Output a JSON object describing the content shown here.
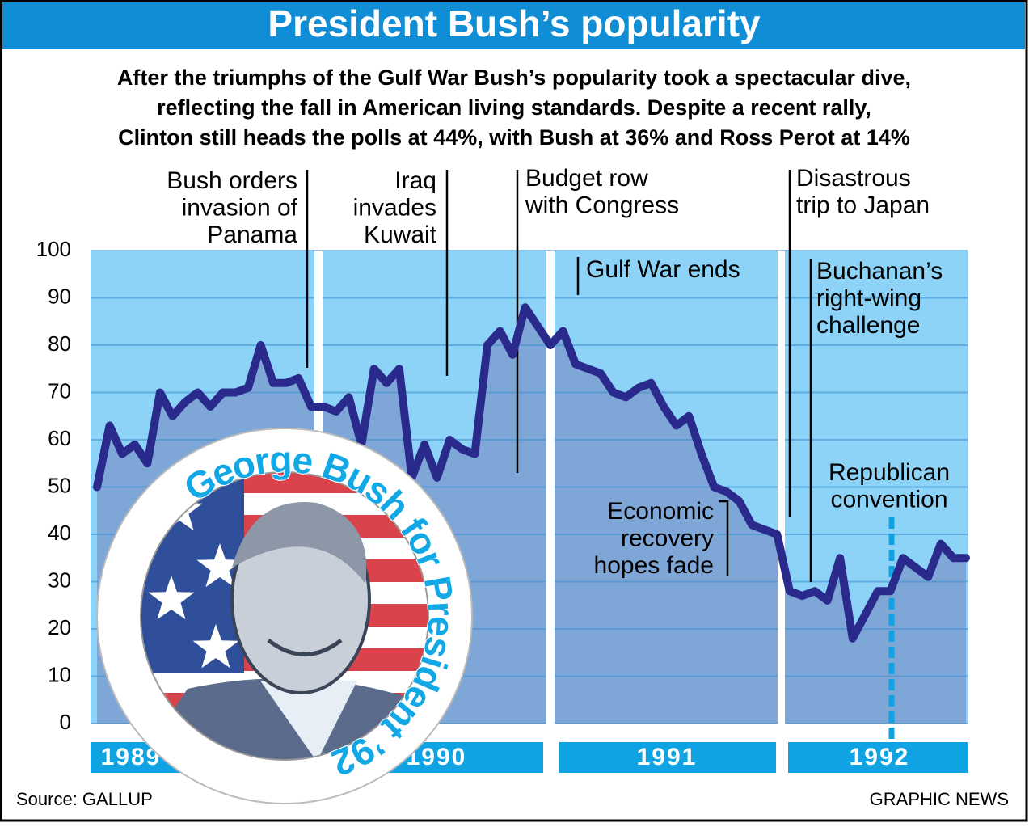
{
  "chart_data": {
    "type": "line",
    "title": "President Bush’s popularity",
    "subtitle": [
      "After the triumphs of the Gulf War Bush’s popularity took a spectacular dive,",
      "reflecting the fall in American living standards. Despite a recent rally,",
      "Clinton still heads the polls at 44%, with Bush at 36% and Ross Perot at 14%"
    ],
    "values": [
      50,
      63,
      57,
      59,
      55,
      70,
      65,
      68,
      70,
      67,
      70,
      70,
      71,
      80,
      72,
      72,
      73,
      67,
      67,
      66,
      69,
      59,
      75,
      72,
      75,
      52,
      59,
      52,
      60,
      58,
      57,
      80,
      83,
      78,
      88,
      84,
      80,
      83,
      76,
      75,
      74,
      70,
      69,
      71,
      72,
      67,
      63,
      65,
      57,
      50,
      49,
      47,
      42,
      41,
      40,
      28,
      27,
      28,
      26,
      35,
      18,
      23,
      28,
      28,
      35,
      33,
      31,
      38,
      35,
      35
    ],
    "color": "#2a2a8c",
    "area_color": "#7ea6d6",
    "background_color": "#8dd3f7",
    "ylim": [
      0,
      100
    ],
    "yticks": [
      0,
      10,
      20,
      30,
      40,
      50,
      60,
      70,
      80,
      90,
      100
    ],
    "grid": true,
    "years": [
      "1989",
      "1990",
      "1991",
      "1992"
    ],
    "annotations": [
      [
        "Bush orders",
        "invasion of",
        "Panama"
      ],
      [
        "Iraq",
        "invades",
        "Kuwait"
      ],
      [
        "Budget row",
        "with Congress"
      ],
      [
        "Gulf War ends"
      ],
      [
        "Economic",
        "recovery",
        "hopes fade"
      ],
      [
        "Disastrous",
        "trip to Japan"
      ],
      [
        "Buchanan’s",
        "right-wing",
        "challenge"
      ],
      [
        "Republican",
        "convention"
      ]
    ],
    "badge_text": "George Bush for President ’92",
    "source": "Source: GALLUP",
    "credit": "GRAPHIC NEWS"
  }
}
